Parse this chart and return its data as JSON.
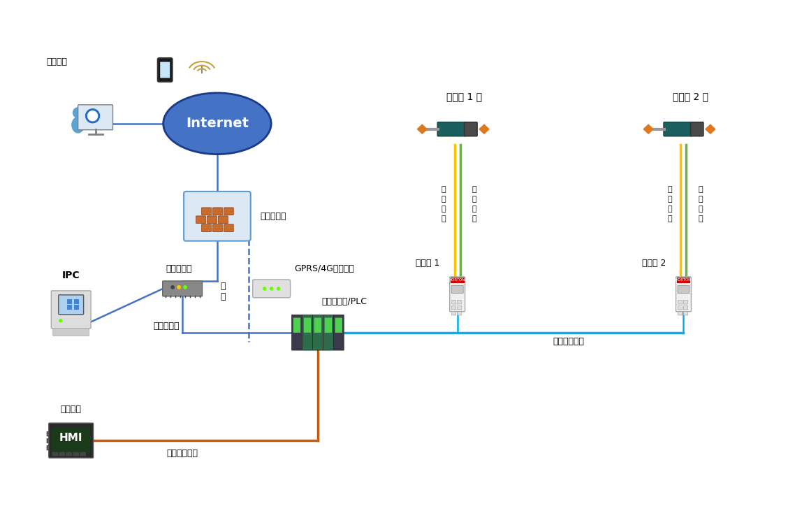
{
  "bg_color": "#ffffff",
  "labels": {
    "remote_monitor": "远程监控",
    "internet": "Internet",
    "firewall": "工业防火墙",
    "router": "工业路由器",
    "or": "或\n者",
    "gprs": "GPRS/4G通讯模块",
    "ipc": "IPC",
    "ethernet": "以太网通讯",
    "plc": "运动控制器/PLC",
    "hmi_label": "人机界面",
    "fieldbus": "工业现场总线",
    "industrial_bus": "工业控制总线",
    "cylinder1": "电动缸 1 号",
    "cylinder2": "电动缸 2 号",
    "driver1": "驱动器 1",
    "driver2": "驱动器 2",
    "power_cable": "动\n力\n电\n缆",
    "feedback_cable": "反\n馈\n电\n缆"
  },
  "colors": {
    "blue_line": "#4472c4",
    "cyan_line": "#00b0f0",
    "orange_line": "#c55a11",
    "green_line": "#70ad47",
    "yellow_line": "#ffc000",
    "internet_fill": "#4472c4",
    "internet_stroke": "#1a3a8a",
    "firewall_box": "#dce9f5",
    "text_color": "#000000"
  }
}
